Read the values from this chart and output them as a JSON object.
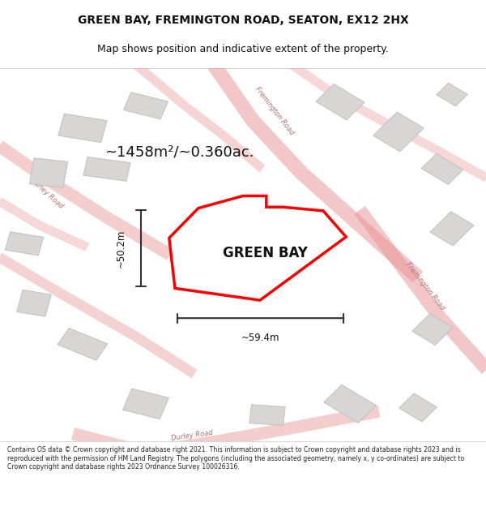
{
  "title": "GREEN BAY, FREMINGTON ROAD, SEATON, EX12 2HX",
  "subtitle": "Map shows position and indicative extent of the property.",
  "area_label": "~1458m²/~0.360ac.",
  "property_label": "GREEN BAY",
  "width_label": "~59.4m",
  "height_label": "~50.2m",
  "footer": "Contains OS data © Crown copyright and database right 2021. This information is subject to Crown copyright and database rights 2023 and is reproduced with the permission of HM Land Registry. The polygons (including the associated geometry, namely x, y co-ordinates) are subject to Crown copyright and database rights 2023 Ordnance Survey 100026316.",
  "map_bg": "#f5f2f2",
  "road_color": "#e89090",
  "building_color": "#d8d5d5",
  "building_edge": "#bbbbbb",
  "property_outline_color": "#ff0000",
  "property_fill_color": "#ffffff",
  "dim_line_color": "#333333",
  "title_color": "#111111",
  "footer_color": "#222222"
}
